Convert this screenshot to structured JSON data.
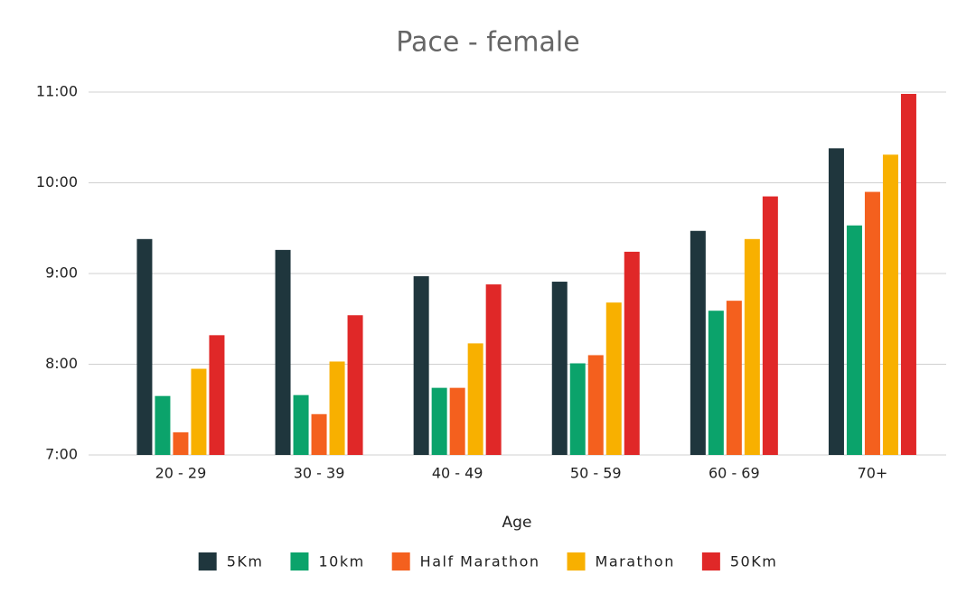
{
  "chart_data": {
    "type": "bar",
    "title": "Pace - female",
    "x_label": "Age",
    "categories": [
      "20 - 29",
      "30 - 39",
      "40 - 49",
      "50 - 59",
      "60 - 69",
      "70+"
    ],
    "series": [
      {
        "name": "5Km",
        "color": "#1f363d",
        "values": [
          9.38,
          9.26,
          8.97,
          8.91,
          9.47,
          10.38
        ]
      },
      {
        "name": "10km",
        "color": "#0ba36b",
        "values": [
          7.65,
          7.66,
          7.74,
          8.01,
          8.59,
          9.53
        ]
      },
      {
        "name": "Half Marathon",
        "color": "#f4601e",
        "values": [
          7.25,
          7.45,
          7.74,
          8.1,
          8.7,
          9.9
        ]
      },
      {
        "name": "Marathon",
        "color": "#f8b000",
        "values": [
          7.95,
          8.03,
          8.23,
          8.68,
          9.38,
          10.31
        ]
      },
      {
        "name": "50Km",
        "color": "#e02828",
        "values": [
          8.32,
          8.54,
          8.88,
          9.24,
          9.85,
          10.98
        ]
      }
    ],
    "ylim": [
      7,
      11
    ],
    "yticks": [
      {
        "value": 7,
        "label": "7:00"
      },
      {
        "value": 8,
        "label": "8:00"
      },
      {
        "value": 9,
        "label": "9:00"
      },
      {
        "value": 10,
        "label": "10:00"
      },
      {
        "value": 11,
        "label": "11:00"
      }
    ],
    "grid": true
  }
}
